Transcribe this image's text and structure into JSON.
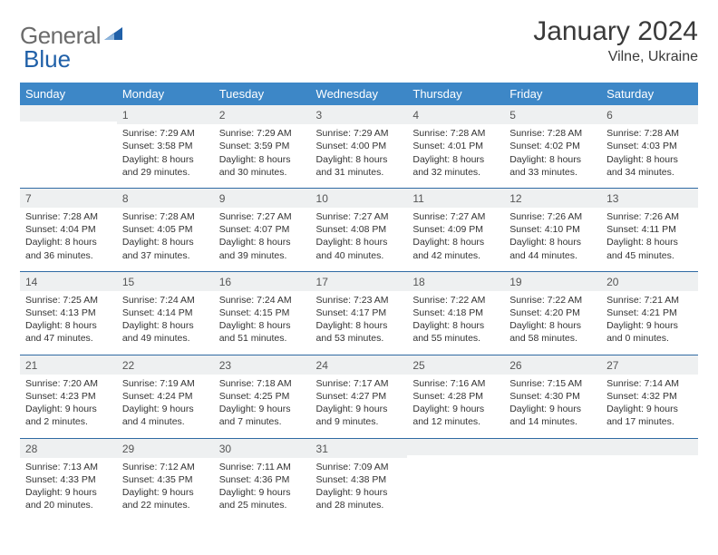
{
  "logo": {
    "text_a": "General",
    "text_b": "Blue"
  },
  "title": "January 2024",
  "location": "Vilne, Ukraine",
  "colors": {
    "header_bg": "#3d87c7",
    "header_text": "#ffffff",
    "row_divider": "#2f6aa3",
    "daynum_bg": "#eef0f1",
    "logo_gray": "#6b6b6b",
    "logo_blue": "#2060a8",
    "text": "#333333"
  },
  "weekdays": [
    "Sunday",
    "Monday",
    "Tuesday",
    "Wednesday",
    "Thursday",
    "Friday",
    "Saturday"
  ],
  "weeks": [
    [
      {
        "n": "",
        "sr": "",
        "ss": "",
        "dl": ""
      },
      {
        "n": "1",
        "sr": "7:29 AM",
        "ss": "3:58 PM",
        "dl": "8 hours and 29 minutes."
      },
      {
        "n": "2",
        "sr": "7:29 AM",
        "ss": "3:59 PM",
        "dl": "8 hours and 30 minutes."
      },
      {
        "n": "3",
        "sr": "7:29 AM",
        "ss": "4:00 PM",
        "dl": "8 hours and 31 minutes."
      },
      {
        "n": "4",
        "sr": "7:28 AM",
        "ss": "4:01 PM",
        "dl": "8 hours and 32 minutes."
      },
      {
        "n": "5",
        "sr": "7:28 AM",
        "ss": "4:02 PM",
        "dl": "8 hours and 33 minutes."
      },
      {
        "n": "6",
        "sr": "7:28 AM",
        "ss": "4:03 PM",
        "dl": "8 hours and 34 minutes."
      }
    ],
    [
      {
        "n": "7",
        "sr": "7:28 AM",
        "ss": "4:04 PM",
        "dl": "8 hours and 36 minutes."
      },
      {
        "n": "8",
        "sr": "7:28 AM",
        "ss": "4:05 PM",
        "dl": "8 hours and 37 minutes."
      },
      {
        "n": "9",
        "sr": "7:27 AM",
        "ss": "4:07 PM",
        "dl": "8 hours and 39 minutes."
      },
      {
        "n": "10",
        "sr": "7:27 AM",
        "ss": "4:08 PM",
        "dl": "8 hours and 40 minutes."
      },
      {
        "n": "11",
        "sr": "7:27 AM",
        "ss": "4:09 PM",
        "dl": "8 hours and 42 minutes."
      },
      {
        "n": "12",
        "sr": "7:26 AM",
        "ss": "4:10 PM",
        "dl": "8 hours and 44 minutes."
      },
      {
        "n": "13",
        "sr": "7:26 AM",
        "ss": "4:11 PM",
        "dl": "8 hours and 45 minutes."
      }
    ],
    [
      {
        "n": "14",
        "sr": "7:25 AM",
        "ss": "4:13 PM",
        "dl": "8 hours and 47 minutes."
      },
      {
        "n": "15",
        "sr": "7:24 AM",
        "ss": "4:14 PM",
        "dl": "8 hours and 49 minutes."
      },
      {
        "n": "16",
        "sr": "7:24 AM",
        "ss": "4:15 PM",
        "dl": "8 hours and 51 minutes."
      },
      {
        "n": "17",
        "sr": "7:23 AM",
        "ss": "4:17 PM",
        "dl": "8 hours and 53 minutes."
      },
      {
        "n": "18",
        "sr": "7:22 AM",
        "ss": "4:18 PM",
        "dl": "8 hours and 55 minutes."
      },
      {
        "n": "19",
        "sr": "7:22 AM",
        "ss": "4:20 PM",
        "dl": "8 hours and 58 minutes."
      },
      {
        "n": "20",
        "sr": "7:21 AM",
        "ss": "4:21 PM",
        "dl": "9 hours and 0 minutes."
      }
    ],
    [
      {
        "n": "21",
        "sr": "7:20 AM",
        "ss": "4:23 PM",
        "dl": "9 hours and 2 minutes."
      },
      {
        "n": "22",
        "sr": "7:19 AM",
        "ss": "4:24 PM",
        "dl": "9 hours and 4 minutes."
      },
      {
        "n": "23",
        "sr": "7:18 AM",
        "ss": "4:25 PM",
        "dl": "9 hours and 7 minutes."
      },
      {
        "n": "24",
        "sr": "7:17 AM",
        "ss": "4:27 PM",
        "dl": "9 hours and 9 minutes."
      },
      {
        "n": "25",
        "sr": "7:16 AM",
        "ss": "4:28 PM",
        "dl": "9 hours and 12 minutes."
      },
      {
        "n": "26",
        "sr": "7:15 AM",
        "ss": "4:30 PM",
        "dl": "9 hours and 14 minutes."
      },
      {
        "n": "27",
        "sr": "7:14 AM",
        "ss": "4:32 PM",
        "dl": "9 hours and 17 minutes."
      }
    ],
    [
      {
        "n": "28",
        "sr": "7:13 AM",
        "ss": "4:33 PM",
        "dl": "9 hours and 20 minutes."
      },
      {
        "n": "29",
        "sr": "7:12 AM",
        "ss": "4:35 PM",
        "dl": "9 hours and 22 minutes."
      },
      {
        "n": "30",
        "sr": "7:11 AM",
        "ss": "4:36 PM",
        "dl": "9 hours and 25 minutes."
      },
      {
        "n": "31",
        "sr": "7:09 AM",
        "ss": "4:38 PM",
        "dl": "9 hours and 28 minutes."
      },
      {
        "n": "",
        "sr": "",
        "ss": "",
        "dl": ""
      },
      {
        "n": "",
        "sr": "",
        "ss": "",
        "dl": ""
      },
      {
        "n": "",
        "sr": "",
        "ss": "",
        "dl": ""
      }
    ]
  ],
  "labels": {
    "sunrise": "Sunrise:",
    "sunset": "Sunset:",
    "daylight": "Daylight:"
  }
}
